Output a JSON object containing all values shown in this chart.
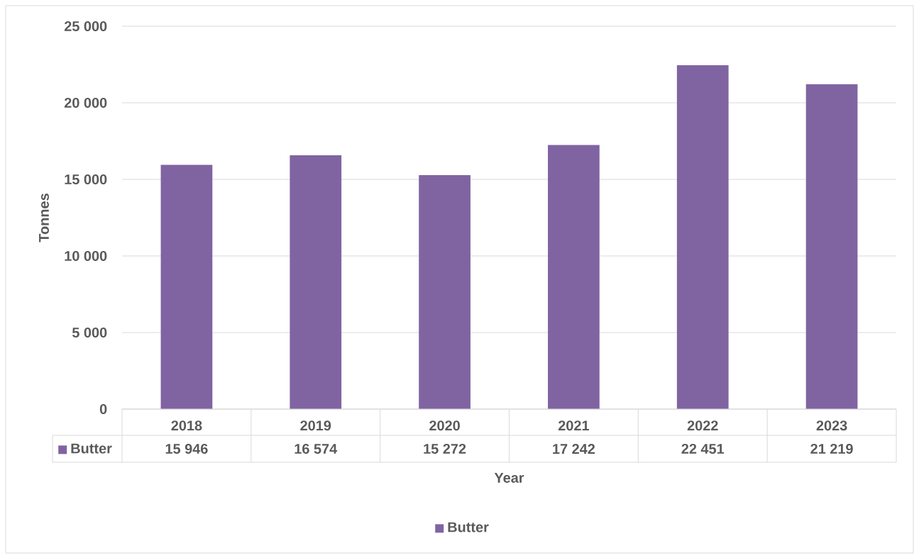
{
  "chart_data": {
    "type": "bar",
    "xlabel": "Year",
    "ylabel": "Tonnes",
    "categories": [
      "2018",
      "2019",
      "2020",
      "2021",
      "2022",
      "2023"
    ],
    "series": [
      {
        "name": "Butter",
        "color": "#8064a2",
        "values": [
          15946,
          16574,
          15272,
          17242,
          22451,
          21219
        ],
        "value_labels": [
          "15 946",
          "16 574",
          "15 272",
          "17 242",
          "22 451",
          "21 219"
        ]
      }
    ],
    "ylim": [
      0,
      25000
    ],
    "yticks": [
      0,
      {
        "value": 5000,
        "label": "5 000"
      },
      {
        "value": 10000,
        "label": "10 000"
      },
      {
        "value": 15000,
        "label": "15 000"
      },
      {
        "value": 20000,
        "label": "20 000"
      },
      {
        "value": 25000,
        "label": "25 000"
      }
    ],
    "grid": "y",
    "legend": "bottom"
  }
}
